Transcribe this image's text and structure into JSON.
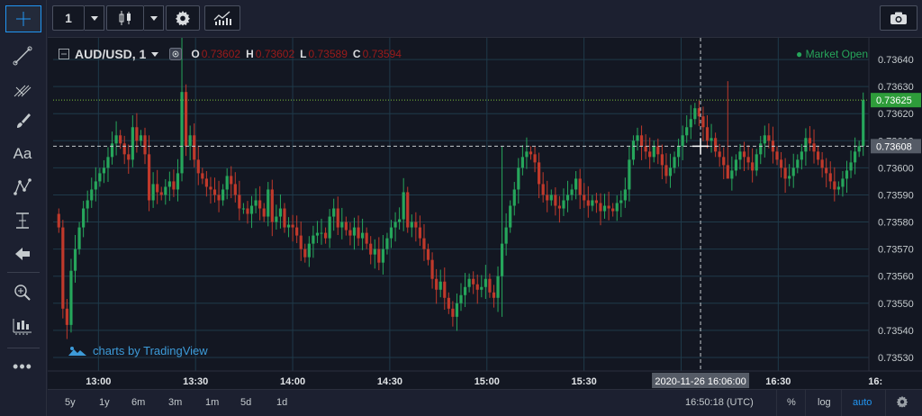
{
  "toolbar": {
    "interval": "1"
  },
  "legend": {
    "symbol": "AUD/USD, 1",
    "ohlc": [
      {
        "key": "O",
        "value": "0.73602"
      },
      {
        "key": "H",
        "value": "0.73602"
      },
      {
        "key": "L",
        "value": "0.73589"
      },
      {
        "key": "C",
        "value": "0.73594"
      }
    ],
    "market_status": "● Market Open"
  },
  "watermark": "charts by TradingView",
  "chart_data": {
    "type": "candlestick",
    "price_ticks": [
      "0.73640",
      "0.73630",
      "0.73620",
      "0.73610",
      "0.73600",
      "0.73590",
      "0.73580",
      "0.73570",
      "0.73560",
      "0.73550",
      "0.73540",
      "0.73530"
    ],
    "time_ticks": [
      "13:00",
      "13:30",
      "14:00",
      "14:30",
      "15:00",
      "15:30",
      "16:00",
      "16:30",
      "16:"
    ],
    "last_price": "0.73625",
    "crosshair_price": "0.73608",
    "crosshair_time": "2020-11-26 16:06:00",
    "ylim": [
      0.73525,
      0.73648
    ],
    "x_start": "12:46",
    "x_end": "16:58",
    "closes": [
      0.73578,
      0.73548,
      0.73542,
      0.73562,
      0.7357,
      0.73578,
      0.73585,
      0.73588,
      0.73592,
      0.73595,
      0.73598,
      0.736,
      0.73604,
      0.73609,
      0.73612,
      0.73609,
      0.73605,
      0.73603,
      0.73615,
      0.7361,
      0.73612,
      0.73605,
      0.73588,
      0.73594,
      0.73591,
      0.7359,
      0.73593,
      0.73595,
      0.73592,
      0.73598,
      0.73628,
      0.73608,
      0.73612,
      0.73603,
      0.73598,
      0.73596,
      0.73593,
      0.73592,
      0.7359,
      0.73588,
      0.73592,
      0.73597,
      0.73594,
      0.7359,
      0.73585,
      0.73585,
      0.73583,
      0.73586,
      0.73588,
      0.73585,
      0.73582,
      0.73592,
      0.7358,
      0.73582,
      0.73585,
      0.73578,
      0.73579,
      0.73578,
      0.73575,
      0.7357,
      0.73567,
      0.73572,
      0.73575,
      0.73576,
      0.73576,
      0.73574,
      0.73582,
      0.73585,
      0.73578,
      0.7358,
      0.73577,
      0.73575,
      0.73578,
      0.73574,
      0.73576,
      0.73572,
      0.73568,
      0.7357,
      0.73565,
      0.7357,
      0.73574,
      0.73578,
      0.7358,
      0.73581,
      0.73591,
      0.73578,
      0.7358,
      0.73578,
      0.73574,
      0.7357,
      0.73566,
      0.73559,
      0.73555,
      0.73558,
      0.73552,
      0.73548,
      0.73545,
      0.7355,
      0.73553,
      0.73556,
      0.73559,
      0.73557,
      0.73555,
      0.73556,
      0.73559,
      0.73554,
      0.73552,
      0.7356,
      0.73572,
      0.73578,
      0.73586,
      0.73592,
      0.736,
      0.73604,
      0.73606,
      0.73605,
      0.73602,
      0.73594,
      0.7359,
      0.73588,
      0.7359,
      0.73586,
      0.73585,
      0.73588,
      0.7359,
      0.73592,
      0.73596,
      0.7359,
      0.73588,
      0.73586,
      0.73588,
      0.73587,
      0.73584,
      0.73586,
      0.73585,
      0.73584,
      0.73587,
      0.73588,
      0.73592,
      0.73603,
      0.7361,
      0.73612,
      0.73608,
      0.73606,
      0.73604,
      0.73608,
      0.73605,
      0.73601,
      0.73597,
      0.736,
      0.73604,
      0.73608,
      0.73612,
      0.73615,
      0.73618,
      0.73622,
      0.73619,
      0.73615,
      0.7361,
      0.73611,
      0.73606,
      0.73604,
      0.73601,
      0.73596,
      0.73599,
      0.73603,
      0.73606,
      0.73604,
      0.73602,
      0.73599,
      0.73605,
      0.73609,
      0.73612,
      0.7361,
      0.73606,
      0.73603,
      0.736,
      0.73596,
      0.73597,
      0.736,
      0.73603,
      0.73606,
      0.73611,
      0.73609,
      0.73606,
      0.73603,
      0.736,
      0.73598,
      0.73595,
      0.73592,
      0.73593,
      0.73596,
      0.73599,
      0.73602,
      0.73606,
      0.73608,
      0.73625
    ],
    "overlays": [
      {
        "i": 30,
        "high": 0.73648,
        "low": 0.73595
      },
      {
        "i": 22,
        "high": 0.73612,
        "low": 0.73584
      },
      {
        "i": 108,
        "high": 0.73608,
        "low": 0.73545
      },
      {
        "i": 163,
        "high": 0.73632,
        "low": 0.73598
      }
    ]
  },
  "bottombar": {
    "ranges": [
      "5y",
      "1y",
      "6m",
      "3m",
      "1m",
      "5d",
      "1d"
    ],
    "clock": "16:50:18 (UTC)",
    "percent": "%",
    "log": "log",
    "auto": "auto"
  },
  "colors": {
    "up": "#26a65b",
    "down": "#c0392b",
    "background": "#131722",
    "grid": "#1f3a4a",
    "accent": "#2196f3",
    "last_price_bg": "#2e9c3a",
    "crosshair_bg": "#555b66"
  }
}
